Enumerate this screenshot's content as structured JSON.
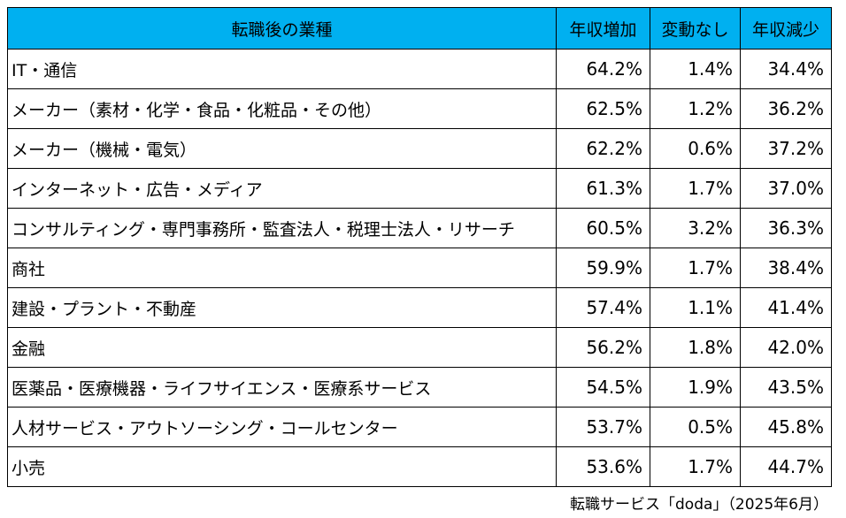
{
  "chart_data": {
    "type": "table",
    "columns": [
      "転職後の業種",
      "年収増加",
      "変動なし",
      "年収減少"
    ],
    "rows": [
      {
        "category": "IT・通信",
        "values": [
          "64.2%",
          "1.4%",
          "34.4%"
        ]
      },
      {
        "category": "メーカー（素材・化学・食品・化粧品・その他）",
        "values": [
          "62.5%",
          "1.2%",
          "36.2%"
        ]
      },
      {
        "category": "メーカー（機械・電気）",
        "values": [
          "62.2%",
          "0.6%",
          "37.2%"
        ]
      },
      {
        "category": "インターネット・広告・メディア",
        "values": [
          "61.3%",
          "1.7%",
          "37.0%"
        ]
      },
      {
        "category": "コンサルティング・専門事務所・監査法人・税理士法人・リサーチ",
        "values": [
          "60.5%",
          "3.2%",
          "36.3%"
        ]
      },
      {
        "category": "商社",
        "values": [
          "59.9%",
          "1.7%",
          "38.4%"
        ]
      },
      {
        "category": "建設・プラント・不動産",
        "values": [
          "57.4%",
          "1.1%",
          "41.4%"
        ]
      },
      {
        "category": "金融",
        "values": [
          "56.2%",
          "1.8%",
          "42.0%"
        ]
      },
      {
        "category": "医薬品・医療機器・ライフサイエンス・医療系サービス",
        "values": [
          "54.5%",
          "1.9%",
          "43.5%"
        ]
      },
      {
        "category": "人材サービス・アウトソーシング・コールセンター",
        "values": [
          "53.7%",
          "0.5%",
          "45.8%"
        ]
      },
      {
        "category": "小売",
        "values": [
          "53.6%",
          "1.7%",
          "44.7%"
        ]
      }
    ],
    "source": "転職サービス「doda」（2025年6月）",
    "header_color": "#00b0f0"
  }
}
